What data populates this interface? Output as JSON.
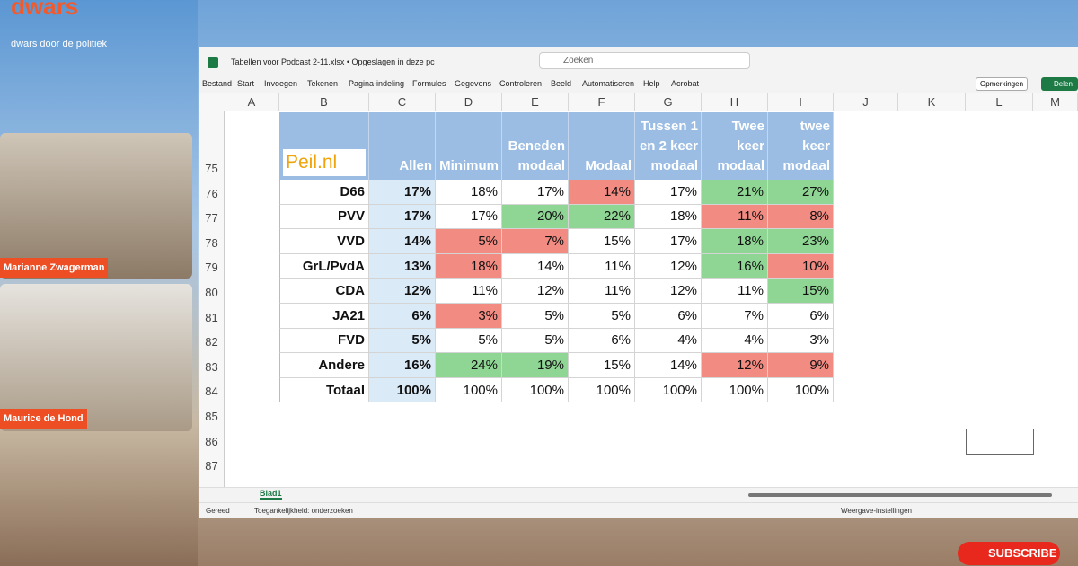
{
  "overlay": {
    "brand": "dwars",
    "tagline": "dwars door de politiek",
    "speakers": [
      "Marianne Zwagerman",
      "Maurice de Hond"
    ],
    "subscribe": "SUBSCRIBE"
  },
  "window": {
    "file_title": "Tabellen voor Podcast 2-11.xlsx • Opgeslagen in deze pc",
    "search": "Zoeken",
    "menu": [
      "Bestand",
      "Start",
      "Invoegen",
      "Tekenen",
      "Pagina-indeling",
      "Formules",
      "Gegevens",
      "Controleren",
      "Beeld",
      "Automatiseren",
      "Help",
      "Acrobat"
    ],
    "comments": "Opmerkingen",
    "share": "Delen"
  },
  "sheet": {
    "columns": [
      "A",
      "B",
      "C",
      "D",
      "E",
      "F",
      "G",
      "H",
      "I",
      "J",
      "K",
      "L",
      "M"
    ],
    "row_numbers": [
      "75",
      "76",
      "77",
      "78",
      "79",
      "80",
      "81",
      "82",
      "83",
      "84",
      "85",
      "86",
      "87"
    ],
    "logo": "Peil.nl",
    "headers": [
      "Allen",
      "Minimum",
      "Beneden modaal",
      "Modaal",
      "Tussen 1 en 2 keer modaal",
      "Twee keer modaal",
      "Meer dan twee keer modaal"
    ],
    "rows": [
      {
        "label": "D66",
        "cells": [
          "17%",
          "18%",
          "17%",
          "14%",
          "17%",
          "21%",
          "27%"
        ],
        "fills": [
          null,
          null,
          null,
          "#f28b82",
          null,
          "#8fd694",
          "#8fd694"
        ]
      },
      {
        "label": "PVV",
        "cells": [
          "17%",
          "17%",
          "20%",
          "22%",
          "18%",
          "11%",
          "8%"
        ],
        "fills": [
          null,
          null,
          "#8fd694",
          "#8fd694",
          null,
          "#f28b82",
          "#f28b82"
        ]
      },
      {
        "label": "VVD",
        "cells": [
          "14%",
          "5%",
          "7%",
          "15%",
          "17%",
          "18%",
          "23%"
        ],
        "fills": [
          null,
          "#f28b82",
          "#f28b82",
          null,
          null,
          "#8fd694",
          "#8fd694"
        ]
      },
      {
        "label": "GrL/PvdA",
        "cells": [
          "13%",
          "18%",
          "14%",
          "11%",
          "12%",
          "16%",
          "10%"
        ],
        "fills": [
          null,
          "#f28b82",
          null,
          null,
          null,
          "#8fd694",
          "#f28b82"
        ]
      },
      {
        "label": "CDA",
        "cells": [
          "12%",
          "11%",
          "12%",
          "11%",
          "12%",
          "11%",
          "15%"
        ],
        "fills": [
          null,
          null,
          null,
          null,
          null,
          null,
          "#8fd694"
        ]
      },
      {
        "label": "JA21",
        "cells": [
          "6%",
          "3%",
          "5%",
          "5%",
          "6%",
          "7%",
          "6%"
        ],
        "fills": [
          null,
          "#f28b82",
          null,
          null,
          null,
          null,
          null
        ]
      },
      {
        "label": "FVD",
        "cells": [
          "5%",
          "5%",
          "5%",
          "6%",
          "4%",
          "4%",
          "3%"
        ],
        "fills": [
          null,
          null,
          null,
          null,
          null,
          null,
          null
        ]
      },
      {
        "label": "Andere",
        "cells": [
          "16%",
          "24%",
          "19%",
          "15%",
          "14%",
          "12%",
          "9%"
        ],
        "fills": [
          null,
          "#8fd694",
          "#8fd694",
          null,
          null,
          "#f28b82",
          "#f28b82"
        ]
      },
      {
        "label": "Totaal",
        "cells": [
          "100%",
          "100%",
          "100%",
          "100%",
          "100%",
          "100%",
          "100%"
        ],
        "fills": [
          null,
          null,
          null,
          null,
          null,
          null,
          null
        ]
      }
    ],
    "tab": "Blad1"
  },
  "status": {
    "ready": "Gereed",
    "accessibility": "Toegankelijkheid: onderzoeken",
    "view": "Weergave-instellingen"
  }
}
